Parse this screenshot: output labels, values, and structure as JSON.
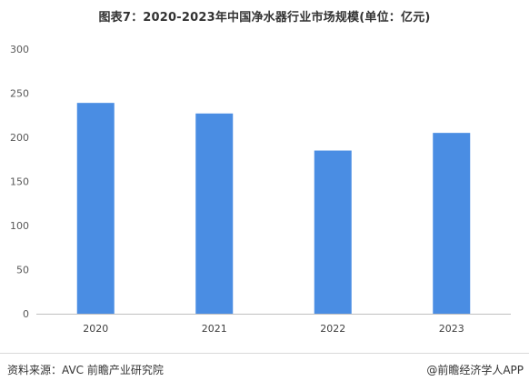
{
  "title": "图表7：2020-2023年中国净水器行业市场规模(单位：亿元)",
  "chart_data": {
    "type": "bar",
    "title": "图表7：2020-2023年中国净水器行业市场规模(单位：亿元)",
    "categories": [
      "2020",
      "2021",
      "2022",
      "2023"
    ],
    "values": [
      239,
      227,
      185,
      205
    ],
    "ylim": [
      0,
      300
    ],
    "yticks": [
      0,
      50,
      100,
      150,
      200,
      250,
      300
    ],
    "xlabel": "",
    "ylabel": "",
    "grid": false,
    "legend": "none",
    "bar_color": "#4a8de3"
  },
  "footer": {
    "source": "资料来源：AVC 前瞻产业研究院",
    "credit": "@前瞻经济学人APP"
  }
}
